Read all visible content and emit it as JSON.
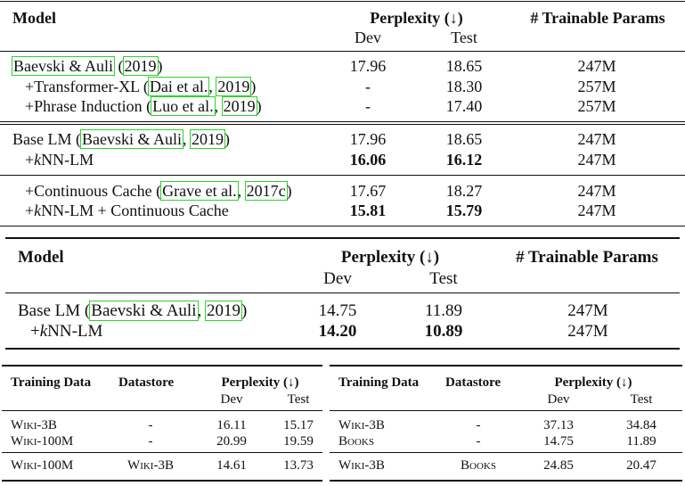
{
  "t1": {
    "headers": {
      "model": "Model",
      "perplexity": "Perplexity (↓)",
      "dev": "Dev",
      "test": "Test",
      "params": "# Trainable Params"
    },
    "rows": [
      {
        "pre": "",
        "cite1": "Baevski & Auli",
        "mid": " (",
        "cite2": "2019",
        "post": ")",
        "dev": "17.96",
        "test": "18.65",
        "params": "247M"
      },
      {
        "pre": "+Transformer-XL (",
        "cite1": "Dai et al.",
        "mid": ", ",
        "cite2": "2019",
        "post": ")",
        "dev": "-",
        "test": "18.30",
        "params": "257M"
      },
      {
        "pre": "+Phrase Induction (",
        "cite1": "Luo et al.",
        "mid": ", ",
        "cite2": "2019",
        "post": ")",
        "dev": "-",
        "test": "17.40",
        "params": "257M"
      },
      {
        "pre": "Base LM (",
        "cite1": "Baevski & Auli",
        "mid": ", ",
        "cite2": "2019",
        "post": ")",
        "dev": "17.96",
        "test": "18.65",
        "params": "247M"
      },
      {
        "pre": "+",
        "k": "k",
        "post": "NN-LM",
        "dev": "16.06",
        "test": "16.12",
        "params": "247M"
      },
      {
        "pre": "+Continuous Cache (",
        "cite1": "Grave et al.",
        "mid": ", ",
        "cite2": "2017c",
        "post": ")",
        "dev": "17.67",
        "test": "18.27",
        "params": "247M"
      },
      {
        "pre": "+",
        "k": "k",
        "post": "NN-LM + Continuous Cache",
        "dev": "15.81",
        "test": "15.79",
        "params": "247M"
      }
    ]
  },
  "t2": {
    "headers": {
      "model": "Model",
      "perplexity": "Perplexity (↓)",
      "dev": "Dev",
      "test": "Test",
      "params": "# Trainable Params"
    },
    "rows": [
      {
        "pre": "Base LM (",
        "cite1": "Baevski & Auli",
        "mid": ", ",
        "cite2": "2019",
        "post": ")",
        "dev": "14.75",
        "test": "11.89",
        "params": "247M"
      },
      {
        "pre": "+",
        "k": "k",
        "post": "NN-LM",
        "dev": "14.20",
        "test": "10.89",
        "params": "247M"
      }
    ]
  },
  "t3": {
    "headers": {
      "training": "Training Data",
      "datastore": "Datastore",
      "perplexity": "Perplexity (↓)",
      "dev": "Dev",
      "test": "Test"
    },
    "rows": [
      {
        "training": "Wiki-3B",
        "datastore": "-",
        "dev": "16.11",
        "test": "15.17"
      },
      {
        "training": "Wiki-100M",
        "datastore": "-",
        "dev": "20.99",
        "test": "19.59"
      },
      {
        "training": "Wiki-100M",
        "datastore": "Wiki-3B",
        "dev": "14.61",
        "test": "13.73"
      }
    ]
  },
  "t4": {
    "headers": {
      "training": "Training Data",
      "datastore": "Datastore",
      "perplexity": "Perplexity (↓)",
      "dev": "Dev",
      "test": "Test"
    },
    "rows": [
      {
        "training": "Wiki-3B",
        "datastore": "-",
        "dev": "37.13",
        "test": "34.84"
      },
      {
        "training": "Books",
        "datastore": "-",
        "dev": "14.75",
        "test": "11.89"
      },
      {
        "training": "Wiki-3B",
        "datastore": "Books",
        "dev": "24.85",
        "test": "20.47"
      }
    ]
  }
}
